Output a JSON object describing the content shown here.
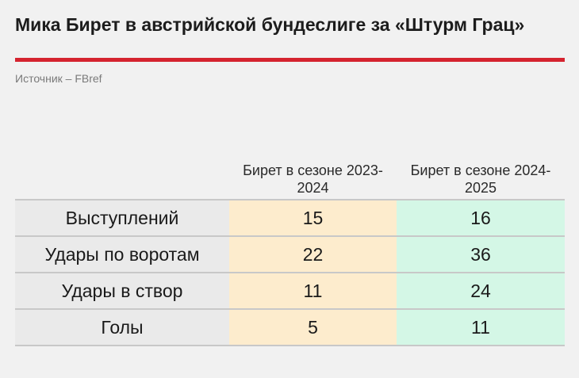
{
  "title": "Мика Бирет в австрийской бундеслиге за «Штурм Грац»",
  "source": "Источник – FBref",
  "colors": {
    "accent_rule": "#d5232f",
    "season1_fill": "#fdeccd",
    "season2_fill": "#d4f7e6",
    "label_fill": "#eaeaea"
  },
  "chart_data": {
    "type": "table",
    "columns": [
      "Бирет в сезоне 2023-2024",
      "Бирет в сезоне 2024-2025"
    ],
    "rows": [
      {
        "label": "Выступлений",
        "values": [
          "15",
          "16"
        ]
      },
      {
        "label": "Удары по воротам",
        "values": [
          "22",
          "36"
        ]
      },
      {
        "label": "Удары в створ",
        "values": [
          "11",
          "24"
        ]
      },
      {
        "label": "Голы",
        "values": [
          "5",
          "11"
        ]
      }
    ]
  }
}
